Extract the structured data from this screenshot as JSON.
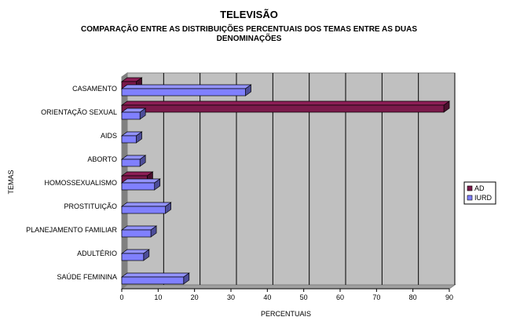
{
  "chart_data": {
    "type": "bar",
    "orientation": "horizontal",
    "three_d": true,
    "title": "TELEVISÃO",
    "subtitle_lines": [
      "COMPARAÇÃO ENTRE AS DISTRIBUIÇÕES PERCENTUAIS DOS TEMAS ENTRE AS DUAS",
      "DENOMINAÇÕES"
    ],
    "xlabel": "PERCENTUAIS",
    "ylabel": "TEMAS",
    "xlim": [
      0,
      90
    ],
    "xticks": [
      0,
      10,
      20,
      30,
      40,
      50,
      60,
      70,
      80,
      90
    ],
    "grid": true,
    "legend_position": "right",
    "categories": [
      "CASAMENTO",
      "ORIENTAÇÃO SEXUAL",
      "AIDS",
      "ABORTO",
      "HOMOSSEXUALISMO",
      "PROSTITUIÇÃO",
      "PLANEJAMENTO FAMILIAR",
      "ADULTÉRIO",
      "SAÚDE FEMININA"
    ],
    "series": [
      {
        "name": "AD",
        "color": "#7B1A4B",
        "values": [
          4,
          88.5,
          0,
          0,
          7,
          0,
          0,
          0,
          0
        ]
      },
      {
        "name": "IURD",
        "color": "#8080FF",
        "values": [
          34,
          5,
          4,
          5,
          9,
          12,
          8,
          6,
          17
        ]
      }
    ],
    "plot_background": "#C0C0C0"
  }
}
